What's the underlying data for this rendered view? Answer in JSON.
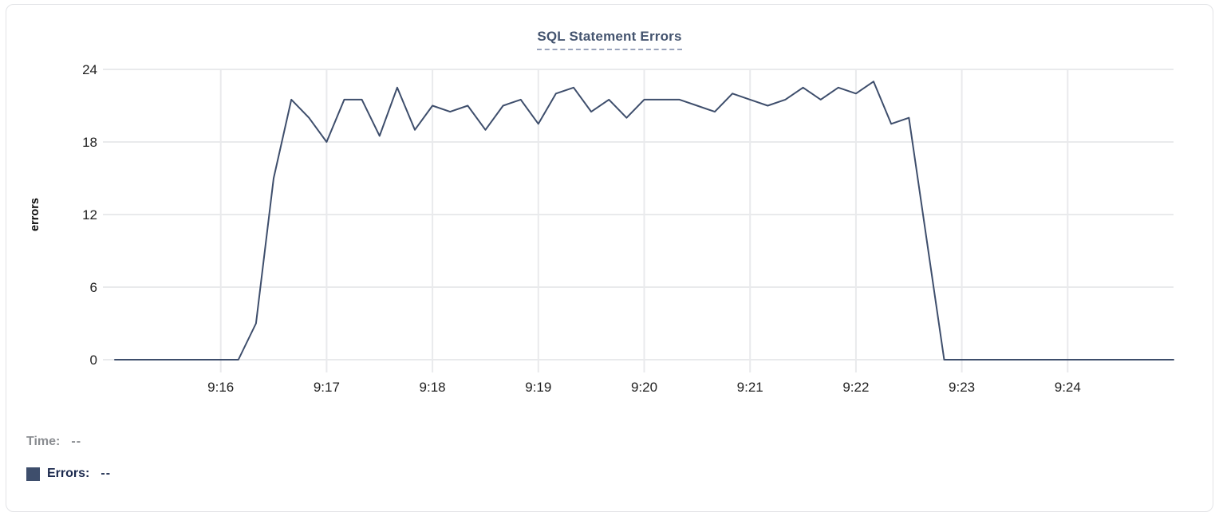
{
  "panel": {
    "title": "SQL Statement Errors"
  },
  "tooltip": {
    "time_label": "Time:",
    "time_value": "--",
    "errors_label": "Errors:",
    "errors_value": "--"
  },
  "colors": {
    "series_line": "#3e4e6c",
    "legend_swatch": "#3e4e6c",
    "title_text": "#44546f",
    "title_underline": "#9aa4bc",
    "gridline": "#e9eaec",
    "axis_tick_text": "#1f1f1f",
    "legend_muted_text": "#8a8d91",
    "legend_series_text": "#1c2a4e",
    "panel_border": "#e2e3e6"
  },
  "chart_data": {
    "type": "line",
    "title": "SQL Statement Errors",
    "xlabel": "",
    "ylabel": "errors",
    "ylim": [
      0,
      24
    ],
    "yticks": [
      0,
      6,
      12,
      18,
      24
    ],
    "xticks": [
      "9:16",
      "9:17",
      "9:18",
      "9:19",
      "9:20",
      "9:21",
      "9:22",
      "9:23",
      "9:24"
    ],
    "x_range": [
      "9:15:00",
      "9:25:00"
    ],
    "grid": true,
    "legend_position": "bottom-left",
    "series": [
      {
        "name": "Errors",
        "color": "#3e4e6c",
        "times": [
          "9:15:00",
          "9:15:10",
          "9:15:20",
          "9:15:30",
          "9:15:40",
          "9:15:50",
          "9:16:00",
          "9:16:10",
          "9:16:20",
          "9:16:30",
          "9:16:40",
          "9:16:50",
          "9:17:00",
          "9:17:10",
          "9:17:20",
          "9:17:30",
          "9:17:40",
          "9:17:50",
          "9:18:00",
          "9:18:10",
          "9:18:20",
          "9:18:30",
          "9:18:40",
          "9:18:50",
          "9:19:00",
          "9:19:10",
          "9:19:20",
          "9:19:30",
          "9:19:40",
          "9:19:50",
          "9:20:00",
          "9:20:10",
          "9:20:20",
          "9:20:30",
          "9:20:40",
          "9:20:50",
          "9:21:00",
          "9:21:10",
          "9:21:20",
          "9:21:30",
          "9:21:40",
          "9:21:50",
          "9:22:00",
          "9:22:10",
          "9:22:20",
          "9:22:30",
          "9:22:40",
          "9:22:50",
          "9:23:00",
          "9:23:10",
          "9:23:20",
          "9:23:30",
          "9:23:40",
          "9:23:50",
          "9:24:00",
          "9:24:10",
          "9:24:20",
          "9:24:30",
          "9:24:40",
          "9:24:50",
          "9:25:00"
        ],
        "values": [
          0,
          0,
          0,
          0,
          0,
          0,
          0,
          0,
          3,
          15,
          21.5,
          20,
          18,
          21.5,
          21.5,
          18.5,
          22.5,
          19,
          21,
          20.5,
          21,
          19,
          21,
          21.5,
          19.5,
          22,
          22.5,
          20.5,
          21.5,
          20,
          21.5,
          21.5,
          21.5,
          21,
          20.5,
          22,
          21.5,
          21,
          21.5,
          22.5,
          21.5,
          22.5,
          22,
          23,
          19.5,
          20,
          10,
          0,
          0,
          0,
          0,
          0,
          0,
          0,
          0,
          0,
          0,
          0,
          0,
          0,
          0
        ]
      }
    ]
  }
}
